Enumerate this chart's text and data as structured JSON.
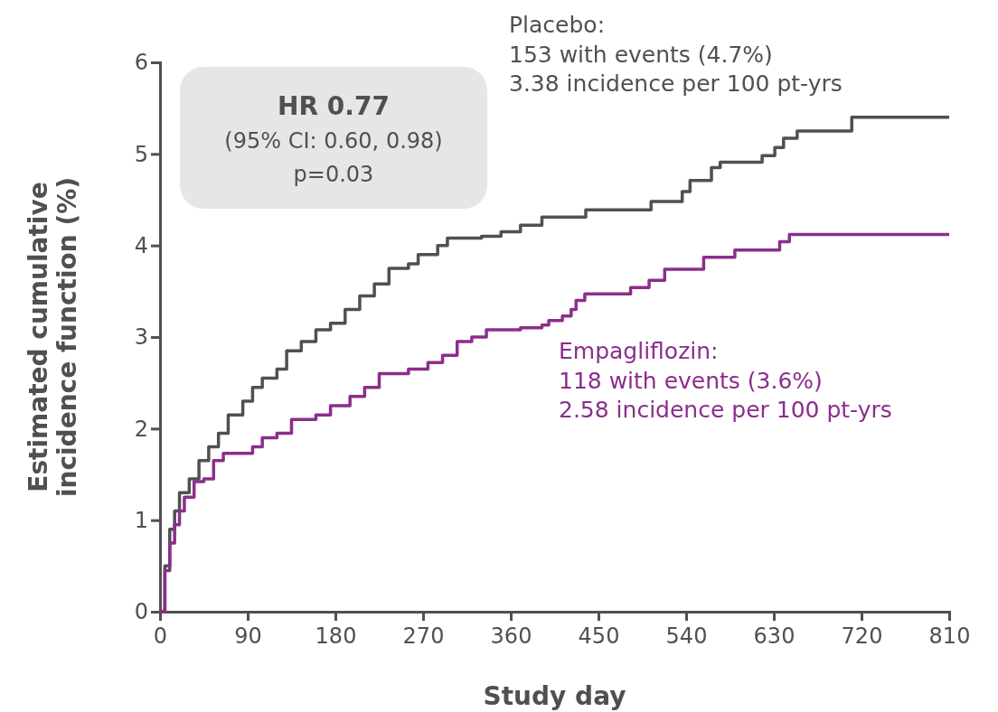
{
  "chart_data": {
    "type": "step",
    "xlabel": "Study day",
    "ylabel": "Estimated cumulative incidence function (%)",
    "xlim": [
      0,
      810
    ],
    "xticks": [
      0,
      90,
      180,
      270,
      360,
      450,
      540,
      630,
      720,
      810
    ],
    "ylim": [
      0,
      6
    ],
    "yticks": [
      0,
      1,
      2,
      3,
      4,
      5,
      6
    ],
    "grid": false,
    "series": [
      {
        "name": "Placebo:",
        "color": "#505050",
        "x": [
          0,
          5,
          10,
          15,
          20,
          30,
          40,
          50,
          60,
          70,
          85,
          95,
          105,
          120,
          130,
          145,
          160,
          175,
          190,
          205,
          220,
          235,
          255,
          265,
          285,
          295,
          330,
          350,
          370,
          392,
          437,
          504,
          536,
          544,
          566,
          575,
          618,
          631,
          640,
          654,
          710,
          810
        ],
        "values": [
          0,
          0.5,
          0.9,
          1.1,
          1.3,
          1.45,
          1.65,
          1.8,
          1.95,
          2.15,
          2.3,
          2.45,
          2.55,
          2.65,
          2.85,
          2.95,
          3.08,
          3.15,
          3.3,
          3.45,
          3.58,
          3.75,
          3.8,
          3.9,
          4.0,
          4.08,
          4.1,
          4.15,
          4.22,
          4.31,
          4.39,
          4.48,
          4.59,
          4.71,
          4.85,
          4.91,
          4.98,
          5.07,
          5.17,
          5.25,
          5.4,
          5.4
        ]
      },
      {
        "name": "Empagliflozin:",
        "color": "#8b2e8b",
        "x": [
          0,
          5,
          10,
          15,
          20,
          25,
          35,
          45,
          55,
          65,
          95,
          105,
          120,
          135,
          160,
          175,
          195,
          210,
          225,
          255,
          275,
          290,
          305,
          320,
          335,
          370,
          392,
          399,
          413,
          422,
          427,
          436,
          483,
          502,
          518,
          558,
          590,
          636,
          646,
          810
        ],
        "values": [
          0,
          0.45,
          0.75,
          0.95,
          1.1,
          1.25,
          1.42,
          1.45,
          1.65,
          1.73,
          1.8,
          1.9,
          1.95,
          2.1,
          2.15,
          2.25,
          2.35,
          2.45,
          2.6,
          2.65,
          2.72,
          2.8,
          2.95,
          3.0,
          3.08,
          3.1,
          3.13,
          3.18,
          3.23,
          3.3,
          3.4,
          3.47,
          3.54,
          3.62,
          3.74,
          3.87,
          3.95,
          4.04,
          4.12,
          4.12
        ]
      }
    ],
    "annotations": [
      "153 with events (4.7%)",
      "3.38 incidence per 100 pt-yrs",
      "118 with events (3.6%)",
      "2.58 incidence per 100 pt-yrs",
      "HR 0.77",
      "(95% CI: 0.60, 0.98)",
      "p=0.03"
    ]
  }
}
